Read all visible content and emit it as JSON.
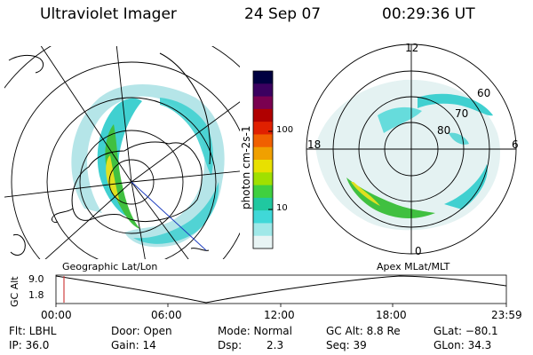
{
  "header": {
    "title": "Ultraviolet Imager",
    "date": "24 Sep 07",
    "time": "00:29:36 UT"
  },
  "left_panel": {
    "caption": "Geographic Lat/Lon"
  },
  "right_panel": {
    "caption": "Apex MLat/MLT",
    "mlt_labels": [
      "12",
      "18",
      "6",
      "0"
    ],
    "lat_labels": [
      "60",
      "70",
      "80"
    ]
  },
  "colorbar": {
    "unit_label": "photon cm-2s-1",
    "ticks": [
      "100",
      "10"
    ],
    "colors": [
      "#000040",
      "#3b0060",
      "#7a0050",
      "#b00000",
      "#e02000",
      "#f06000",
      "#f0a000",
      "#e8e000",
      "#a0e000",
      "#40d040",
      "#20c8a0",
      "#40d8d8",
      "#a0e8e8",
      "#e8f4f4"
    ]
  },
  "alt_plot": {
    "ylabel": "GC Alt",
    "y_top": "9.0",
    "y_bottom": "1.8",
    "x_ticks": [
      "00:00",
      "06:00",
      "12:00",
      "18:00",
      "23:59"
    ],
    "marker_color": "#d04040"
  },
  "info": {
    "flt": "Flt: LBHL",
    "ip": "IP: 36.0",
    "door": "Door: Open",
    "gain": "Gain: 14",
    "mode": "Mode: Normal",
    "dsp_label": "Dsp:",
    "dsp_value": "2.3",
    "gc_alt": "GC Alt: 8.8 Re",
    "seq": "Seq: 39",
    "glat": "GLat: −80.1",
    "glon": "GLon:  34.3"
  }
}
